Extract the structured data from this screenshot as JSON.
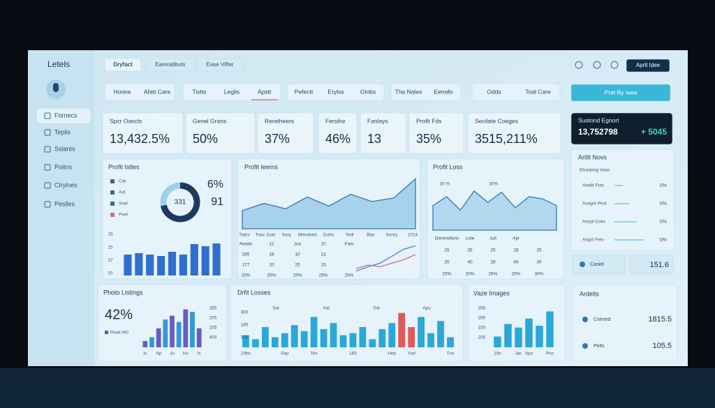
{
  "sidebar": {
    "title": "Letels",
    "items": [
      "Fornecs",
      "Teplis",
      "Sslants",
      "Poitns",
      "Clrylnes",
      "Peslles"
    ]
  },
  "topbar": {
    "tabs": [
      "Dryfact",
      "Eareratibuts",
      "Ease Vifter"
    ],
    "button": "Aprtl Idee"
  },
  "nav": {
    "groups": [
      [
        "Hoone",
        "Afatt Care"
      ],
      [
        "Tistts",
        "Leglis",
        "Apstt"
      ],
      [
        "Pefectt",
        "Erylss",
        "Globs"
      ],
      [
        "Tha Nales",
        "Eenafo"
      ],
      [
        "Odds",
        "Toal Care"
      ]
    ],
    "search": "Prat By Ieea"
  },
  "kpis": [
    {
      "label": "Spcr Oancls",
      "value": "13,432.5%"
    },
    {
      "label": "Genel Grans",
      "value": "50%"
    },
    {
      "label": "Reretheers",
      "value": "37%"
    },
    {
      "label": "Fersihe",
      "value": "46%"
    },
    {
      "label": "Fanlays",
      "value": "13"
    },
    {
      "label": "Profit Fds",
      "value": "35%"
    },
    {
      "label": "Secilate Coeges",
      "value": "3515,211%"
    }
  ],
  "summary": {
    "title": "Sustond Egnort",
    "value": "13,752798",
    "delta": "+ 5045"
  },
  "news": {
    "title": "Artlit Novs",
    "subtitle": "Elvarplog Vaas",
    "rows": [
      {
        "label": "Aeafit Fots",
        "value": "0%"
      },
      {
        "label": "Asegst Pest",
        "value": "0%"
      },
      {
        "label": "Aespt Coks",
        "value": "0%"
      },
      {
        "label": "Aogct Fets",
        "value": "0%"
      }
    ]
  },
  "canrel": {
    "label": "Caniel",
    "value": "151.6"
  },
  "artists": {
    "title": "Ardelts",
    "rows": [
      {
        "label": "Cotmed",
        "value": "1815.5"
      },
      {
        "label": "Pelts",
        "value": "105.5"
      }
    ]
  },
  "tables": {
    "profit_items": [
      [
        "Aeads",
        "12",
        "Jun",
        "10",
        "Fam"
      ],
      [
        "285",
        "18",
        "10",
        "13"
      ],
      [
        "177",
        "20",
        "25",
        "15"
      ],
      [
        "25%",
        "25%",
        "25%",
        "25%",
        "25%"
      ]
    ],
    "profit_loss": [
      [
        "Dentnotlons",
        "Lnte",
        "Jull",
        "Ajir"
      ],
      [
        "25",
        "35",
        "25",
        "28",
        "25"
      ],
      [
        "20",
        "40",
        "28",
        "40",
        "30"
      ],
      [
        "25%",
        "20%",
        "26%",
        "25%",
        "30%"
      ]
    ]
  },
  "chart_data": [
    {
      "type": "pie",
      "title": "Profit Istles",
      "center_label": "331",
      "values": [
        72,
        28
      ],
      "colors": [
        "#1c3b5c",
        "#9fd0ea"
      ],
      "stats": [
        "6%",
        "91"
      ],
      "legend": [
        "Cat",
        "Aid",
        "Ssel",
        "Pvet"
      ]
    },
    {
      "type": "bar",
      "values": [
        30,
        32,
        30,
        28,
        34,
        30,
        45,
        42,
        46
      ],
      "color": "#2f6fd0",
      "ylim": [
        0,
        50
      ],
      "side_labels": [
        "15",
        "15",
        "27",
        "15"
      ]
    },
    {
      "type": "area",
      "title": "Profit Ieems",
      "categories": [
        "Tiahs",
        "Twsr Zoar",
        "Sary",
        "Mendeed",
        "Duhs",
        "Tedl",
        "Blar",
        "Senry",
        "2014"
      ],
      "values": [
        20,
        28,
        22,
        35,
        25,
        38,
        30,
        34,
        55
      ],
      "ylim": [
        0,
        60
      ],
      "color": "#7fbde3"
    },
    {
      "type": "line",
      "series": [
        {
          "color": "#3b7fd6",
          "values": [
            5,
            10,
            14,
            22,
            30,
            34
          ]
        },
        {
          "color": "#d56b8a",
          "values": [
            8,
            12,
            10,
            14,
            18,
            24
          ]
        }
      ],
      "ylim": [
        0,
        40
      ]
    },
    {
      "type": "area",
      "title": "Profit Loss",
      "values": [
        22,
        30,
        18,
        35,
        25,
        34,
        20,
        30,
        28,
        22
      ],
      "ylim": [
        0,
        45
      ],
      "color": "#8fc7e6",
      "annotations": [
        "30 %",
        "30%"
      ]
    },
    {
      "type": "bar",
      "title": "Photo Listings",
      "headline": "42%",
      "note": "Peak AI0",
      "categories": [
        "Is",
        null,
        "Ap",
        null,
        "Ju",
        null,
        "Hs",
        null,
        "Is"
      ],
      "values": [
        5,
        8,
        15,
        22,
        25,
        20,
        30,
        28,
        15
      ],
      "colors": [
        "#6a5bc4",
        "#2f9bd6",
        "#6a5bc4",
        "#2f9bd6",
        "#6a5bc4",
        "#2f9bd6",
        "#6a5bc4",
        "#2f9bd6",
        "#6a5bc4"
      ],
      "ylim": [
        0,
        32
      ],
      "side_labels": [
        "285",
        "205",
        "205",
        "400"
      ]
    },
    {
      "type": "bar",
      "title": "Drfit Losses",
      "categories": [
        "19bs",
        null,
        null,
        null,
        "Sep",
        null,
        null,
        "Tes",
        null,
        null,
        null,
        "185",
        null,
        null,
        null,
        "Hep",
        null,
        "Yud",
        null,
        null,
        null,
        "Tus"
      ],
      "values": [
        12,
        8,
        20,
        10,
        14,
        22,
        16,
        30,
        18,
        24,
        12,
        14,
        20,
        8,
        18,
        24,
        34,
        20,
        30,
        14,
        26,
        10
      ],
      "colors": [
        "#2aa8d8",
        "#2aa8d8",
        "#2aa8d8",
        "#2aa8d8",
        "#2aa8d8",
        "#2aa8d8",
        "#2aa8d8",
        "#2aa8d8",
        "#2aa8d8",
        "#2aa8d8",
        "#2aa8d8",
        "#2aa8d8",
        "#2aa8d8",
        "#2aa8d8",
        "#2aa8d8",
        "#2aa8d8",
        "#e05a5a",
        "#e05a5a",
        "#2aa8d8",
        "#2aa8d8",
        "#2aa8d8",
        "#2aa8d8"
      ],
      "ylim": [
        0,
        40
      ],
      "side_labels": [
        "300",
        "185",
        "100"
      ],
      "top_labels": [
        "Sal",
        "Aal",
        "Sal",
        "Apu"
      ]
    },
    {
      "type": "bar",
      "title": "Vaze Images",
      "categories": [
        "19s",
        null,
        "Jac",
        "Apo",
        null,
        "Pvs"
      ],
      "values": [
        12,
        26,
        22,
        32,
        24,
        40
      ],
      "color": "#2aa8d8",
      "ylim": [
        0,
        45
      ],
      "side_labels": [
        "285",
        "285",
        "150",
        "205"
      ]
    }
  ]
}
